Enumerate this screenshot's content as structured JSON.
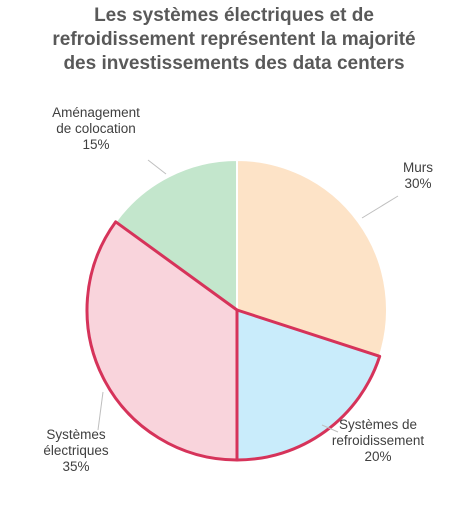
{
  "chart_data": {
    "type": "pie",
    "title_lines": [
      "Les systèmes électriques et de",
      "refroidissement représentent la majorité",
      "des investissements des data centers"
    ],
    "slices": [
      {
        "label_lines": [
          "Murs"
        ],
        "value": 30,
        "value_label": "30%",
        "color": "#FDE3C7",
        "highlight": false
      },
      {
        "label_lines": [
          "Systèmes de",
          "refroidissement"
        ],
        "value": 20,
        "value_label": "20%",
        "color": "#C9ECFB",
        "highlight": true
      },
      {
        "label_lines": [
          "Systèmes",
          "électriques"
        ],
        "value": 35,
        "value_label": "35%",
        "color": "#F9D4DC",
        "highlight": true
      },
      {
        "label_lines": [
          "Aménagement",
          "de colocation"
        ],
        "value": 15,
        "value_label": "15%",
        "color": "#C3E6CC",
        "highlight": false
      }
    ],
    "highlight_color": "#D6335A",
    "legend": "none"
  }
}
